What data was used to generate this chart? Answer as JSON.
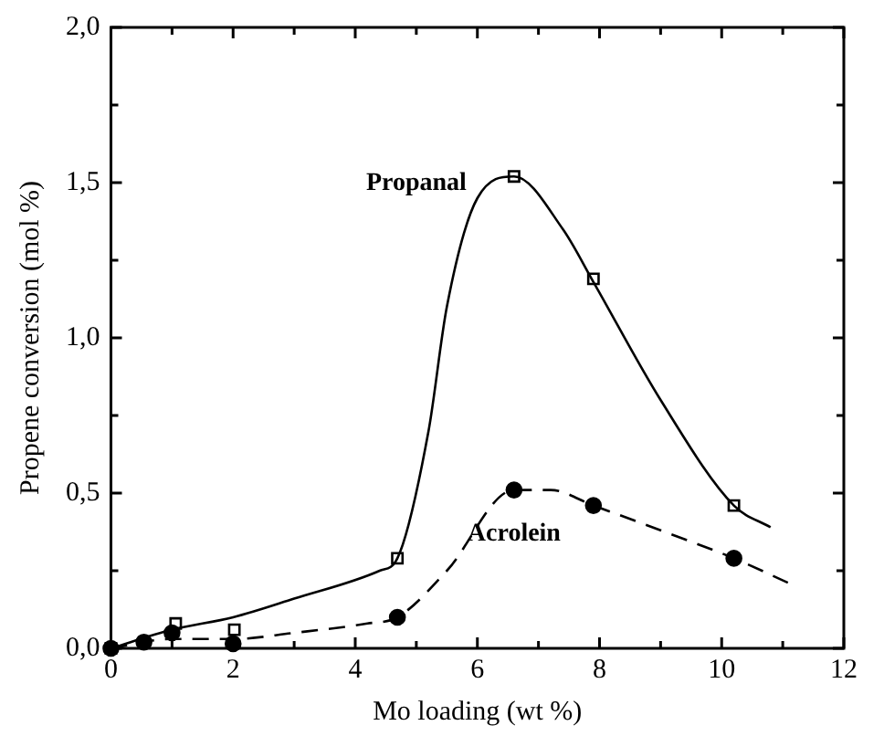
{
  "chart_data": {
    "type": "line",
    "xlabel": "Mo loading (wt %)",
    "ylabel": "Propene conversion (mol %)",
    "xlim": [
      0,
      12
    ],
    "ylim": [
      0,
      2
    ],
    "xticks": [
      0,
      {
        "value": 1,
        "label": null
      },
      2,
      {
        "value": 3,
        "label": null
      },
      4,
      {
        "value": 5,
        "label": null
      },
      6,
      {
        "value": 7,
        "label": null
      },
      8,
      {
        "value": 9,
        "label": null
      },
      10,
      {
        "value": 11,
        "label": null
      },
      12
    ],
    "yticks": [
      {
        "value": 0,
        "label": "0,0"
      },
      {
        "value": 0.25,
        "label": null
      },
      {
        "value": 0.5,
        "label": "0,5"
      },
      {
        "value": 0.75,
        "label": null
      },
      {
        "value": 1,
        "label": "1,0"
      },
      {
        "value": 1.25,
        "label": null
      },
      {
        "value": 1.5,
        "label": "1,5"
      },
      {
        "value": 1.75,
        "label": null
      },
      {
        "value": 2,
        "label": "2,0"
      }
    ],
    "grid": false,
    "legend": false,
    "series": [
      {
        "type": "scatter",
        "name": "Propanal",
        "color": "#000000",
        "marker": "square",
        "x": [
          0,
          1.06,
          2.02,
          4.69,
          6.6,
          7.9,
          10.2
        ],
        "values": [
          0,
          0.08,
          0.06,
          0.29,
          1.52,
          1.19,
          0.46
        ]
      },
      {
        "type": "scatter",
        "name": "Acrolein",
        "color": "#000000",
        "marker": "circle",
        "x": [
          0,
          0.54,
          1.0,
          2.0,
          4.69,
          6.6,
          7.9,
          10.2
        ],
        "values": [
          0,
          0.02,
          0.05,
          0.015,
          0.1,
          0.51,
          0.46,
          0.29
        ]
      },
      {
        "type": "line",
        "color": "#000000",
        "marker": "none",
        "line_style": "solid",
        "x": [
          0,
          1,
          2,
          3,
          4.4,
          4.69,
          5.2,
          5.5,
          6,
          6.6,
          7.4,
          7.9,
          9,
          10.2,
          10.8
        ],
        "values": [
          0,
          0.06,
          0.1,
          0.16,
          0.25,
          0.29,
          0.7,
          1.1,
          1.45,
          1.52,
          1.35,
          1.18,
          0.8,
          0.46,
          0.39
        ]
      },
      {
        "type": "line",
        "color": "#000000",
        "marker": "none",
        "line_style": "dashed",
        "x": [
          0,
          1,
          2,
          3,
          4.2,
          4.69,
          5.5,
          6.6,
          7.2,
          7.9,
          9,
          10.2,
          11.1
        ],
        "values": [
          0,
          0.03,
          0.03,
          0.05,
          0.08,
          0.1,
          0.25,
          0.51,
          0.51,
          0.46,
          0.38,
          0.29,
          0.21
        ]
      }
    ]
  }
}
